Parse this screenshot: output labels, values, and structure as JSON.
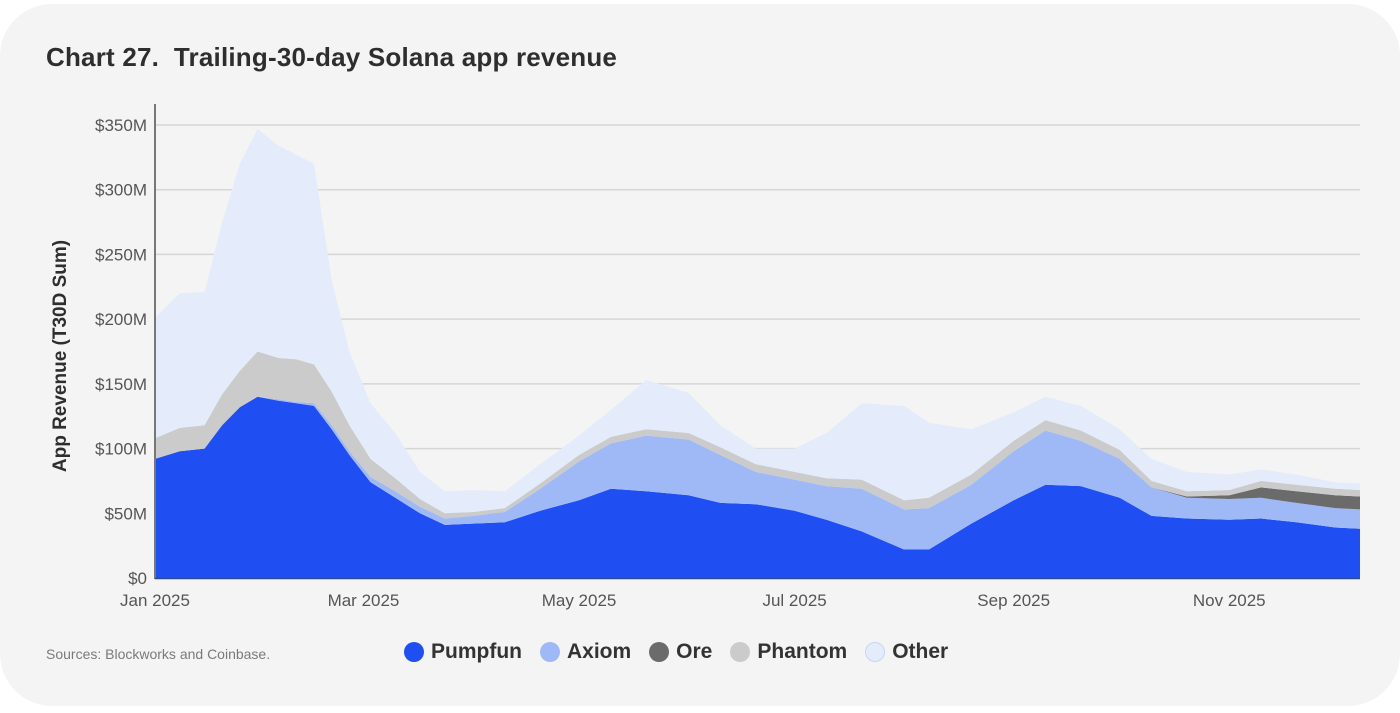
{
  "title": "Chart 27.  Trailing-30-day Solana app revenue",
  "source": "Sources: Blockworks and Coinbase.",
  "colors": {
    "Pumpfun": "#1f4ff2",
    "Axiom": "#9fb9f7",
    "Ore": "#6b6b6b",
    "Phantom": "#cbcbcb",
    "Other": "#e4ecfb",
    "background": "#f4f4f4",
    "grid": "#d6d6d6"
  },
  "chart_data": {
    "type": "area",
    "stacked": true,
    "title": "Chart 27.  Trailing-30-day Solana app revenue",
    "xlabel": "",
    "ylabel": "App Revenue (T30D Sum)",
    "ylim": [
      0,
      350
    ],
    "y_unit": "$M",
    "y_ticks": [
      0,
      50,
      100,
      150,
      200,
      250,
      300,
      350
    ],
    "y_tick_labels": [
      "$0",
      "$50M",
      "$100M",
      "$150M",
      "$200M",
      "$250M",
      "$300M",
      "$350M"
    ],
    "x_ticks": [
      "2025-01-01",
      "2025-03-01",
      "2025-05-01",
      "2025-07-01",
      "2025-09-01",
      "2025-11-01"
    ],
    "x_tick_labels": [
      "Jan 2025",
      "Mar 2025",
      "May 2025",
      "Jul 2025",
      "Sep 2025",
      "Nov 2025"
    ],
    "xlim": [
      "2025-01-01",
      "2025-12-08"
    ],
    "grid": true,
    "legend_position": "bottom",
    "x": [
      "2025-01-01",
      "2025-01-08",
      "2025-01-15",
      "2025-01-20",
      "2025-01-25",
      "2025-01-30",
      "2025-02-05",
      "2025-02-10",
      "2025-02-15",
      "2025-02-20",
      "2025-02-25",
      "2025-03-03",
      "2025-03-10",
      "2025-03-17",
      "2025-03-24",
      "2025-04-01",
      "2025-04-10",
      "2025-04-20",
      "2025-05-01",
      "2025-05-10",
      "2025-05-20",
      "2025-06-01",
      "2025-06-10",
      "2025-06-20",
      "2025-07-01",
      "2025-07-10",
      "2025-07-20",
      "2025-08-01",
      "2025-08-08",
      "2025-08-20",
      "2025-09-01",
      "2025-09-10",
      "2025-09-20",
      "2025-10-01",
      "2025-10-10",
      "2025-10-20",
      "2025-11-01",
      "2025-11-10",
      "2025-11-20",
      "2025-12-01",
      "2025-12-08"
    ],
    "series": [
      {
        "name": "Pumpfun",
        "values": [
          92,
          98,
          100,
          118,
          132,
          140,
          137,
          135,
          133,
          115,
          95,
          74,
          62,
          50,
          41,
          42,
          43,
          52,
          60,
          69,
          67,
          64,
          58,
          57,
          52,
          45,
          36,
          22,
          22,
          42,
          60,
          72,
          71,
          62,
          48,
          46,
          45,
          46,
          43,
          39,
          38
        ]
      },
      {
        "name": "Axiom",
        "values": [
          0,
          0,
          0,
          0,
          0,
          0,
          1,
          1,
          2,
          3,
          3,
          4,
          5,
          5,
          5,
          6,
          8,
          17,
          30,
          35,
          43,
          43,
          37,
          25,
          24,
          26,
          33,
          31,
          32,
          30,
          38,
          42,
          35,
          30,
          22,
          16,
          16,
          16,
          15,
          15,
          15
        ]
      },
      {
        "name": "Ore",
        "values": [
          0,
          0,
          0,
          0,
          0,
          0,
          0,
          0,
          0,
          0,
          0,
          0,
          0,
          0,
          0,
          0,
          0,
          0,
          0,
          0,
          0,
          0,
          0,
          0,
          0,
          0,
          0,
          0,
          0,
          0,
          0,
          0,
          0,
          0,
          0,
          1,
          3,
          8,
          9,
          10,
          10
        ]
      },
      {
        "name": "Phantom",
        "values": [
          16,
          18,
          18,
          24,
          28,
          35,
          32,
          33,
          30,
          26,
          20,
          14,
          10,
          6,
          4,
          3,
          3,
          4,
          5,
          5,
          5,
          5,
          6,
          6,
          6,
          6,
          7,
          7,
          8,
          8,
          8,
          8,
          8,
          7,
          5,
          4,
          4,
          5,
          5,
          5,
          5
        ]
      },
      {
        "name": "Other",
        "values": [
          93,
          104,
          103,
          133,
          160,
          172,
          164,
          158,
          155,
          86,
          57,
          43,
          35,
          21,
          17,
          17,
          13,
          15,
          15,
          21,
          38,
          31,
          17,
          12,
          18,
          35,
          59,
          73,
          58,
          35,
          22,
          18,
          19,
          16,
          17,
          15,
          12,
          9,
          8,
          5,
          5
        ]
      }
    ]
  }
}
